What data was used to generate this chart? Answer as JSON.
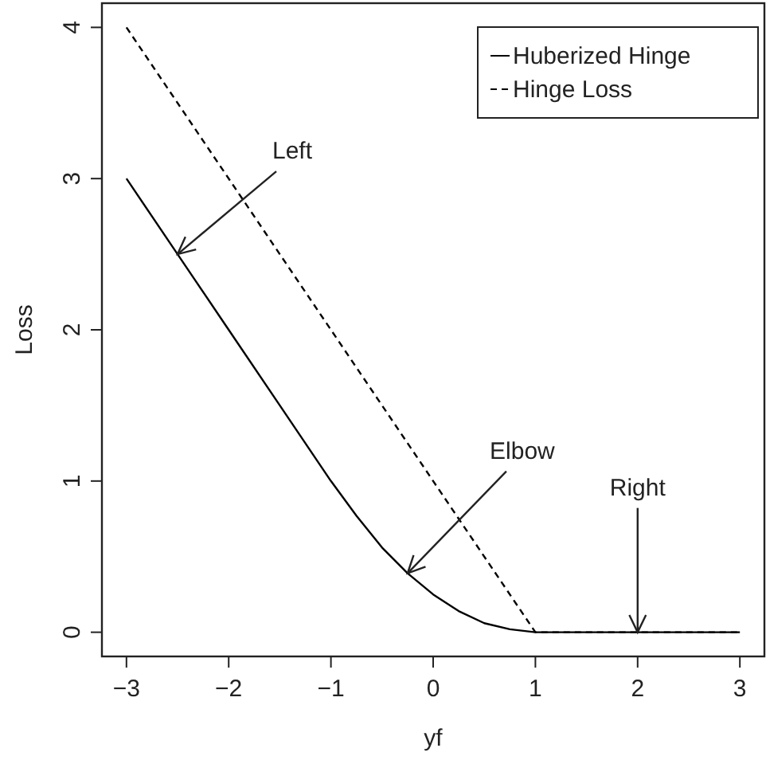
{
  "chart_data": {
    "type": "line",
    "xlabel": "yf",
    "ylabel": "Loss",
    "xlim": [
      -3.24,
      3.24
    ],
    "ylim": [
      -0.16,
      4.16
    ],
    "xticks": [
      {
        "value": -3,
        "label": "−3"
      },
      {
        "value": -2,
        "label": "−2"
      },
      {
        "value": -1,
        "label": "−1"
      },
      0,
      1,
      2,
      3
    ],
    "yticks": [
      0,
      1,
      2,
      3,
      4
    ],
    "grid": false,
    "legend": "top right",
    "marker": "none",
    "series": [
      {
        "name": "Huberized Hinge",
        "color": "#000000",
        "line_style": "solid",
        "x": [
          -3,
          -2.5,
          -2,
          -1.5,
          -1,
          -0.75,
          -0.5,
          -0.25,
          0,
          0.25,
          0.5,
          0.75,
          1,
          2,
          3
        ],
        "values": [
          3,
          2.5,
          2,
          1.5,
          1,
          0.77,
          0.56,
          0.39,
          0.25,
          0.14,
          0.06,
          0.02,
          0,
          0,
          0
        ]
      },
      {
        "name": "Hinge Loss",
        "color": "#000000",
        "line_style": "dashed",
        "x": [
          -3,
          1,
          3
        ],
        "values": [
          4,
          0,
          0
        ]
      }
    ],
    "annotations": [
      {
        "text": "Left",
        "x": -2.5,
        "y": 2.5
      },
      {
        "text": "Elbow",
        "x": -0.25,
        "y": 0.39
      },
      {
        "text": "Right",
        "x": 2,
        "y": 0
      }
    ]
  }
}
